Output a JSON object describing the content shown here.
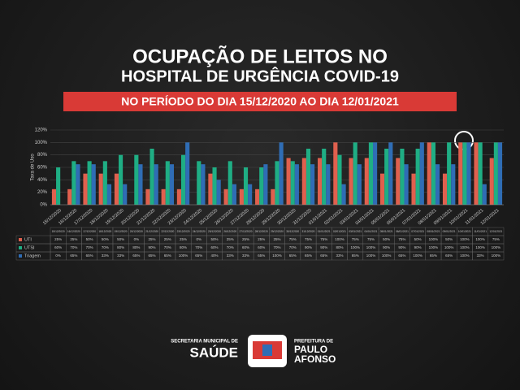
{
  "chart_data": {
    "type": "bar",
    "title": "OCUPAÇÃO DE LEITOS NO",
    "title_line2": "HOSPITAL DE URGÊNCIA COVID-19",
    "subtitle": "NO PERÍODO DO DIA 15/12/2020 AO DIA 12/01/2021",
    "y_label": "Taxa de Uso",
    "categories": [
      "15/12/2020",
      "16/12/2020",
      "17/12/2020",
      "18/12/2020",
      "19/12/2020",
      "20/12/2020",
      "21/12/2020",
      "22/12/2020",
      "23/12/2020",
      "24/12/2020",
      "25/12/2020",
      "26/12/2020",
      "27/12/2020",
      "28/12/2020",
      "29/12/2020",
      "30/12/2020",
      "31/12/2020",
      "01/01/2021",
      "02/01/2021",
      "03/01/2021",
      "04/01/2021",
      "05/01/2021",
      "06/01/2021",
      "07/01/2021",
      "08/01/2021",
      "09/01/2021",
      "10/01/2021",
      "11/01/2021",
      "12/01/2021"
    ],
    "series": [
      {
        "name": "UTI",
        "color": "#e0604e",
        "values": [
          25,
          25,
          50,
          50,
          50,
          0,
          25,
          25,
          25,
          0,
          50,
          25,
          25,
          25,
          25,
          75,
          75,
          75,
          100,
          75,
          75,
          50,
          75,
          50,
          100,
          50,
          100,
          100,
          75
        ],
        "value_labels": [
          "25%",
          "25%",
          "50%",
          "50%",
          "50%",
          "0%",
          "25%",
          "25%",
          "25%",
          "0%",
          "50%",
          "25%",
          "25%",
          "25%",
          "25%",
          "75%",
          "75%",
          "75%",
          "100%",
          "75%",
          "75%",
          "50%",
          "75%",
          "50%",
          "100%",
          "50%",
          "100%",
          "100%",
          "75%"
        ]
      },
      {
        "name": "UTSI",
        "color": "#1fae84",
        "values": [
          60,
          70,
          70,
          70,
          80,
          80,
          90,
          70,
          80,
          70,
          60,
          70,
          60,
          60,
          70,
          70,
          90,
          90,
          80,
          100,
          100,
          90,
          90,
          90,
          100,
          100,
          100,
          100,
          100
        ],
        "value_labels": [
          "60%",
          "70%",
          "70%",
          "70%",
          "80%",
          "80%",
          "90%",
          "70%",
          "80%",
          "70%",
          "60%",
          "70%",
          "60%",
          "60%",
          "70%",
          "70%",
          "90%",
          "90%",
          "80%",
          "100%",
          "100%",
          "90%",
          "90%",
          "90%",
          "100%",
          "100%",
          "100%",
          "100%",
          "100%"
        ]
      },
      {
        "name": "Triagem",
        "color": "#2f6db5",
        "values": [
          0,
          65,
          65,
          33,
          33,
          65,
          65,
          65,
          100,
          65,
          40,
          33,
          33,
          65,
          100,
          65,
          65,
          65,
          33,
          65,
          100,
          100,
          65,
          100,
          65,
          65,
          100,
          33,
          100
        ],
        "value_labels": [
          "0%",
          "65%",
          "65%",
          "33%",
          "33%",
          "65%",
          "65%",
          "65%",
          "100%",
          "65%",
          "40%",
          "33%",
          "33%",
          "65%",
          "100%",
          "65%",
          "65%",
          "65%",
          "33%",
          "65%",
          "100%",
          "100%",
          "65%",
          "100%",
          "65%",
          "65%",
          "100%",
          "33%",
          "100%"
        ]
      }
    ],
    "ylim": [
      0,
      120
    ],
    "yticks": [
      {
        "value": 0,
        "label": "0%"
      },
      {
        "value": 20,
        "label": "20%"
      },
      {
        "value": 40,
        "label": "40%"
      },
      {
        "value": 60,
        "label": "60%"
      },
      {
        "value": 80,
        "label": "80%"
      },
      {
        "value": 100,
        "label": "100%"
      },
      {
        "value": 120,
        "label": "120%"
      }
    ],
    "grid": true
  },
  "footer": {
    "left_small": "SECRETARIA MUNICIPAL DE",
    "left_big": "SAÚDE",
    "right_small": "PREFEITURA DE",
    "right_big_1": "PAULO",
    "right_big_2": "AFONSO"
  }
}
